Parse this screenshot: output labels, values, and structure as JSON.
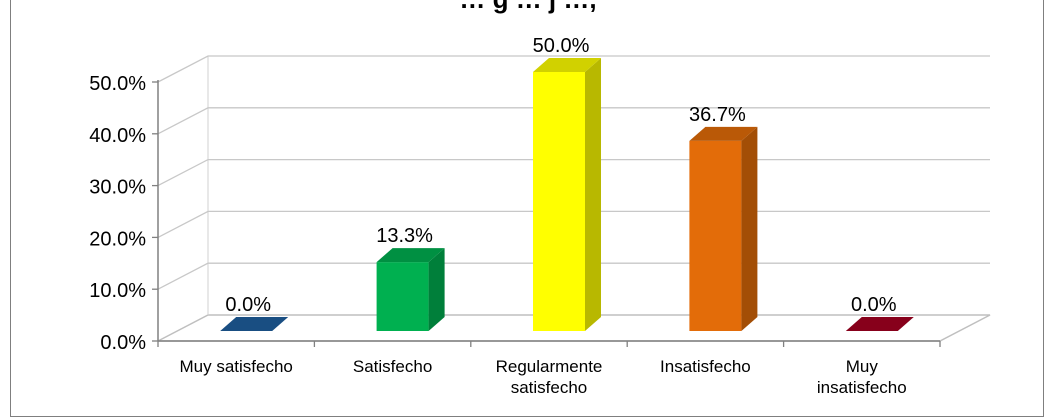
{
  "chart_data": {
    "type": "bar",
    "title": "… g … j …,",
    "categories": [
      [
        "Muy satisfecho"
      ],
      [
        "Satisfecho"
      ],
      [
        "Regularmente",
        "satisfecho"
      ],
      [
        "Insatisfecho"
      ],
      [
        "Muy",
        "insatisfecho"
      ]
    ],
    "values": [
      0.0,
      13.3,
      50.0,
      36.7,
      0.0
    ],
    "data_labels": [
      "0.0%",
      "13.3%",
      "50.0%",
      "36.7%",
      "0.0%"
    ],
    "colors": [
      "#1f5f9e",
      "#00b050",
      "#ffff00",
      "#e36c09",
      "#a50021"
    ],
    "y_ticks": [
      "0.0%",
      "10.0%",
      "20.0%",
      "30.0%",
      "40.0%",
      "50.0%"
    ],
    "ylim": [
      0,
      50
    ],
    "grid": true,
    "style": "3d-column"
  }
}
